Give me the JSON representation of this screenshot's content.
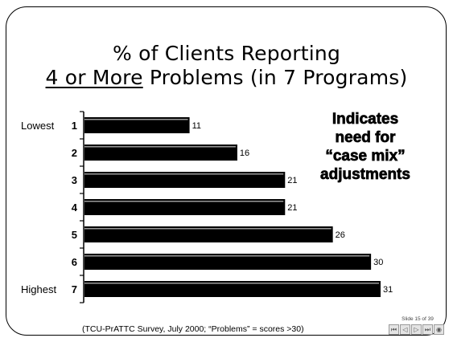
{
  "slide": {
    "title_line1": "% of Clients Reporting",
    "title_underlined": "4 or More",
    "title_rest": " Problems (in 7 Programs)",
    "note_lines": [
      "Indicates",
      "need for",
      "“case mix”",
      "adjustments"
    ],
    "source": "(TCU-PrATTC Survey, July 2000; “Problems” = scores >30)",
    "slide_number": "Slide 15 of 39",
    "nav_buttons": [
      {
        "name": "first-slide-icon",
        "glyph": "⏮"
      },
      {
        "name": "previous-slide-icon",
        "glyph": "◁"
      },
      {
        "name": "next-slide-icon",
        "glyph": "▷"
      },
      {
        "name": "last-slide-icon",
        "glyph": "⏭"
      },
      {
        "name": "sound-icon",
        "glyph": "◉"
      }
    ]
  },
  "chart_data": {
    "type": "bar",
    "orientation": "horizontal",
    "title": "% of Clients Reporting 4 or More Problems (in 7 Programs)",
    "categories": [
      "1",
      "2",
      "3",
      "4",
      "5",
      "6",
      "7"
    ],
    "category_annotations": [
      "Lowest",
      "",
      "",
      "",
      "",
      "",
      "Highest"
    ],
    "values": [
      11,
      16,
      21,
      21,
      26,
      30,
      31
    ],
    "xlabel": "",
    "ylabel": "",
    "xlim": [
      0,
      31
    ],
    "grid": false,
    "bar_color": "#000000",
    "bar_highlight_color": "#9a9a9a"
  }
}
